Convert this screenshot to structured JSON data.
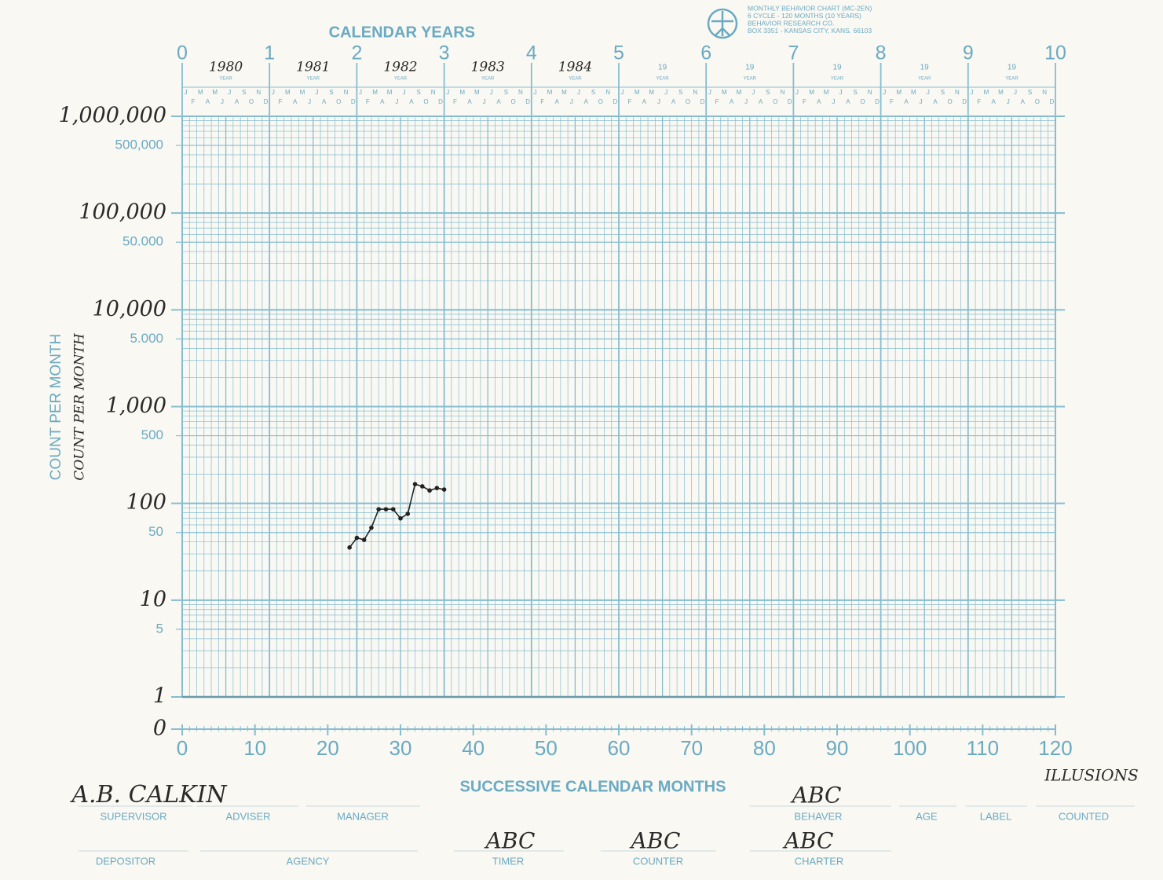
{
  "header": {
    "lines": [
      "MONTHLY BEHAVIOR CHART (MC-2EN)",
      "6 CYCLE - 120 MONTHS (10 YEARS)",
      "BEHAVIOR RESEARCH CO.",
      "BOX 3351 - KANSAS CITY, KANS. 66103"
    ]
  },
  "chart_data": {
    "type": "line",
    "title": "CALENDAR YEARS",
    "x_label": "SUCCESSIVE CALENDAR MONTHS",
    "y_label": "COUNT PER MONTH",
    "y_label_handwritten": "COUNT PER MONTH",
    "log_y": true,
    "grid": true,
    "grid_color": "#86bdd0",
    "color": "#222222",
    "x": [
      23,
      24,
      25,
      26,
      27,
      28,
      29,
      30,
      31,
      32,
      33,
      34,
      35,
      36
    ],
    "values": [
      35,
      44,
      42,
      56,
      87,
      87,
      87,
      70,
      78,
      158,
      150,
      136,
      144,
      139
    ],
    "xlim": [
      0,
      120
    ],
    "xticks": [
      0,
      10,
      20,
      30,
      40,
      50,
      60,
      70,
      80,
      90,
      100,
      110,
      120
    ],
    "x2lim": [
      0,
      10
    ],
    "x2ticks": [
      0,
      1,
      2,
      3,
      4,
      5,
      6,
      7,
      8,
      9,
      10
    ],
    "year_labels": [
      "1980",
      "1981",
      "1982",
      "1983",
      "1984",
      "19",
      "19",
      "19",
      "19",
      "19"
    ],
    "year_word": "YEAR",
    "month_letters": [
      "J",
      "F",
      "M",
      "A",
      "M",
      "J",
      "J",
      "A",
      "S",
      "O",
      "N",
      "D"
    ],
    "ylim": [
      1,
      1000000
    ],
    "yticks": [
      {
        "value": 0,
        "label": "0"
      },
      1,
      5,
      10,
      50,
      100,
      500,
      {
        "value": 1000,
        "label": "1,000"
      },
      {
        "value": 5000,
        "label": "5.000"
      },
      {
        "value": 10000,
        "label": "10,000"
      },
      {
        "value": 50000,
        "label": "50.000"
      },
      {
        "value": 100000,
        "label": "100,000"
      },
      {
        "value": 500000,
        "label": "500,000"
      },
      {
        "value": 1000000,
        "label": "1,000,000"
      }
    ]
  },
  "form": {
    "fields": [
      {
        "label": "SUPERVISOR",
        "value": "A.B. CALKIN"
      },
      {
        "label": "ADVISER"
      },
      {
        "label": "MANAGER"
      },
      {
        "label": "BEHAVER",
        "value": "ABC"
      },
      {
        "label": "AGE"
      },
      {
        "label": "LABEL"
      },
      {
        "label": "COUNTED",
        "value": "ILLUSIONS"
      },
      {
        "label": "DEPOSITOR"
      },
      {
        "label": "AGENCY"
      },
      {
        "label": "TIMER",
        "value": "ABC"
      },
      {
        "label": "COUNTER",
        "value": "ABC"
      },
      {
        "label": "CHARTER",
        "value": "ABC"
      }
    ]
  }
}
